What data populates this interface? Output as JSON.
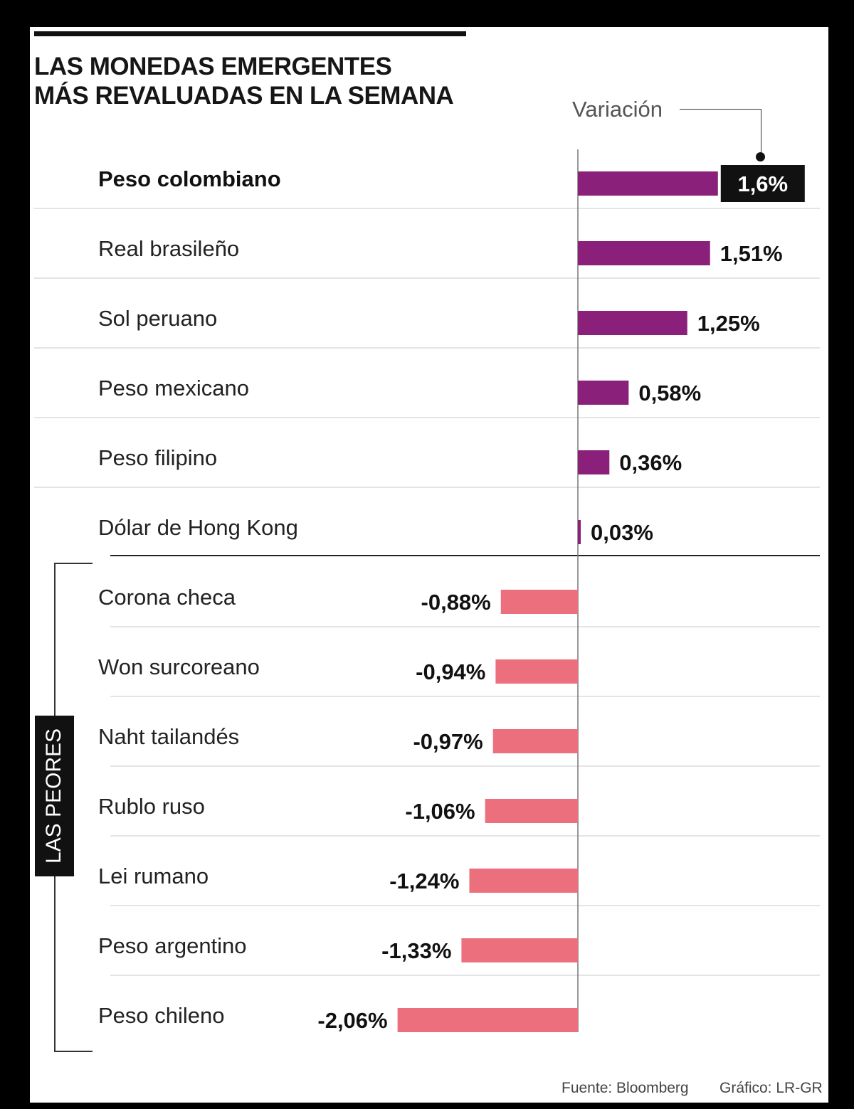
{
  "title": {
    "line1": "LAS MONEDAS EMERGENTES",
    "line2": "MÁS REVALUADAS EN LA SEMANA"
  },
  "variation_label": "Variación",
  "worst_group_label": "LAS PEORES",
  "footer": {
    "source": "Fuente: Bloomberg",
    "credit": "Gráfico: LR-GR"
  },
  "colors": {
    "positive": "#8a2079",
    "negative": "#ec6f7e",
    "highlight_box": "#111111"
  },
  "chart_data": {
    "type": "bar",
    "orientation": "horizontal",
    "title": "LAS MONEDAS EMERGENTES MÁS REVALUADAS EN LA SEMANA",
    "value_label": "Variación",
    "unit": "%",
    "highlight": "Peso colombiano",
    "categories": [
      "Peso colombiano",
      "Real brasileño",
      "Sol peruano",
      "Peso mexicano",
      "Peso filipino",
      "Dólar de Hong Kong",
      "Corona checa",
      "Won surcoreano",
      "Naht tailandés",
      "Rublo ruso",
      "Lei rumano",
      "Peso argentino",
      "Peso chileno"
    ],
    "values": [
      1.6,
      1.51,
      1.25,
      0.58,
      0.36,
      0.03,
      -0.88,
      -0.94,
      -0.97,
      -1.06,
      -1.24,
      -1.33,
      -2.06
    ],
    "value_labels": [
      "1,6%",
      "1,51%",
      "1,25%",
      "0,58%",
      "0,36%",
      "0,03%",
      "-0,88%",
      "-0,94%",
      "-0,97%",
      "-1,06%",
      "-1,24%",
      "-1,33%",
      "-2,06%"
    ],
    "xlim": [
      -2.06,
      1.6
    ]
  }
}
